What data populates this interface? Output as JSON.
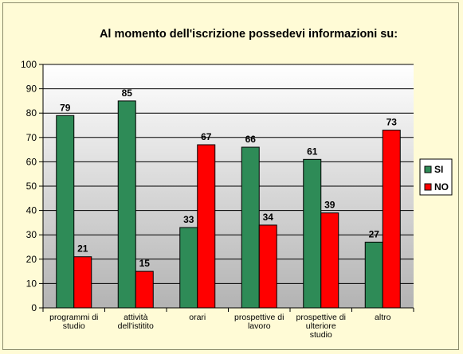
{
  "chart_data": {
    "type": "bar",
    "title": "Al momento dell'iscrizione possedevi informazioni su:",
    "categories": [
      [
        "programmi di",
        "studio"
      ],
      [
        "attività",
        "dell'istitito"
      ],
      [
        "orari"
      ],
      [
        "prospettive di",
        "lavoro"
      ],
      [
        "prospettive di",
        "ulteriore",
        "studio"
      ],
      [
        "altro"
      ]
    ],
    "series": [
      {
        "name": "SI",
        "color": "#2e8b57",
        "values": [
          79,
          85,
          33,
          66,
          61,
          27
        ]
      },
      {
        "name": "NO",
        "color": "#ff0000",
        "values": [
          21,
          15,
          67,
          34,
          39,
          73
        ]
      }
    ],
    "ylim": [
      0,
      100
    ],
    "yticks": [
      0,
      10,
      20,
      30,
      40,
      50,
      60,
      70,
      80,
      90,
      100
    ],
    "grid": true,
    "legend": "right",
    "plot_background": "gradient-white-to-grey"
  }
}
